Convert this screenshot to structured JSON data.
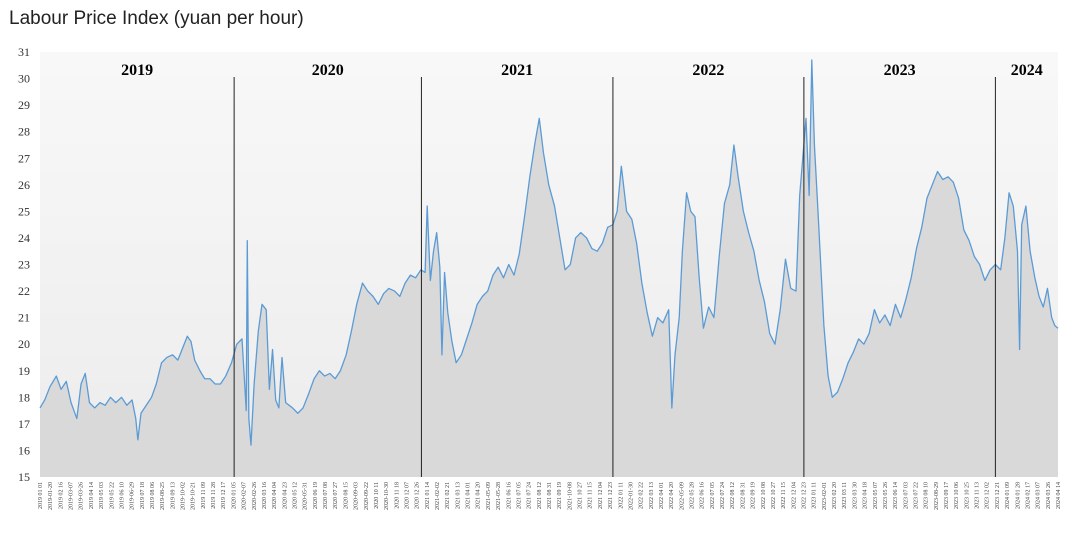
{
  "chart_data": {
    "type": "area",
    "title": "Labour Price Index (yuan per hour)",
    "xlabel": "",
    "ylabel": "",
    "ylim": [
      15,
      31
    ],
    "yticks": [
      15,
      16,
      17,
      18,
      19,
      20,
      21,
      22,
      23,
      24,
      25,
      26,
      27,
      28,
      29,
      30,
      31
    ],
    "grid": false,
    "line_color": "#5b9bd5",
    "fill_color": "#d9d9d9",
    "year_labels": [
      "2019",
      "2020",
      "2021",
      "2022",
      "2023",
      "2024"
    ],
    "year_dividers": [
      "2020-01-05",
      "2020-12-26",
      "2021-12-25",
      "2022-12-23",
      "2023-12-22"
    ],
    "x_start": "2019-01-01",
    "x_end": "2024-04-19",
    "x_tick_labels": [
      "2019 01 01",
      "2019-01-20",
      "2019 02 16",
      "2019-03-07",
      "2019-03-26",
      "2019 04 14",
      "2019 05 03",
      "2019 05 22",
      "2019 06 10",
      "2019-06-29",
      "2019 07 18",
      "2019 08 06",
      "2019-08-25",
      "2019 09 13",
      "2019-10-02",
      "2019-10-21",
      "2019 11 09",
      "2019 11 28",
      "2019 12 17",
      "2020 01 05",
      "2020-02-07",
      "2020-02-26",
      "2020 03 16",
      "2020 04 04",
      "2020 04 23",
      "2020 05 12",
      "2020-05-31",
      "2020 06 19",
      "2020 07 08",
      "2020 07 27",
      "2020 08 15",
      "2020-09-03",
      "2020-09-22",
      "2020 10 11",
      "2020-10-30",
      "2020 11 18",
      "2020 12 07",
      "2020 12 26",
      "2021 01 14",
      "2021-02-02",
      "2021 02 21",
      "2021 03 13",
      "2021 04 01",
      "2021 04 20",
      "2021-05-09",
      "2021-05-28",
      "2021 06 16",
      "2021 07 05",
      "2021 07 24",
      "2021 08 12",
      "2021 08 31",
      "2021 09 19",
      "2021-10-08",
      "2021 10 27",
      "2021 11 15",
      "2021 12 04",
      "2021 12 23",
      "2022 01 11",
      "2022-01-30",
      "2022 02 22",
      "2022 03 13",
      "2022 04 01",
      "2022 04 20",
      "2022-05-09",
      "2022 05 28",
      "2022 06 16",
      "2022 07 05",
      "2022 07 24",
      "2022 08 12",
      "2022 08 31",
      "2022 09 19",
      "2022 10 08",
      "2022 10 27",
      "2022 11 15",
      "2022 12 04",
      "2022 12 23",
      "2023 01 11",
      "2023-02-01",
      "2023 02 20",
      "2023 03 11",
      "2023 03 30",
      "2023 04 18",
      "2023 05 07",
      "2023 05 26",
      "2023 06 14",
      "2023 07 03",
      "2023 07 22",
      "2023 08 10",
      "2023-08-29",
      "2023 09 17",
      "2023 10 06",
      "2023 10 25",
      "2023 11 13",
      "2023 12 02",
      "2023 12 21",
      "2024 01 09",
      "2024 01 28",
      "2024 02 17",
      "2024 03 07",
      "2024 03 26",
      "2024 04 14"
    ],
    "series": [
      {
        "values": [
          [
            "2019-01-01",
            17.6
          ],
          [
            "2019-01-10",
            17.9
          ],
          [
            "2019-01-20",
            18.4
          ],
          [
            "2019-02-01",
            18.8
          ],
          [
            "2019-02-10",
            18.3
          ],
          [
            "2019-02-20",
            18.6
          ],
          [
            "2019-03-01",
            17.8
          ],
          [
            "2019-03-12",
            17.2
          ],
          [
            "2019-03-20",
            18.5
          ],
          [
            "2019-03-28",
            18.9
          ],
          [
            "2019-04-05",
            17.8
          ],
          [
            "2019-04-15",
            17.6
          ],
          [
            "2019-04-25",
            17.8
          ],
          [
            "2019-05-05",
            17.7
          ],
          [
            "2019-05-15",
            18.0
          ],
          [
            "2019-05-25",
            17.8
          ],
          [
            "2019-06-05",
            18.0
          ],
          [
            "2019-06-15",
            17.7
          ],
          [
            "2019-06-25",
            17.9
          ],
          [
            "2019-07-02",
            17.2
          ],
          [
            "2019-07-06",
            16.4
          ],
          [
            "2019-07-12",
            17.4
          ],
          [
            "2019-07-22",
            17.7
          ],
          [
            "2019-08-01",
            18.0
          ],
          [
            "2019-08-10",
            18.5
          ],
          [
            "2019-08-20",
            19.3
          ],
          [
            "2019-08-30",
            19.5
          ],
          [
            "2019-09-10",
            19.6
          ],
          [
            "2019-09-20",
            19.4
          ],
          [
            "2019-09-30",
            19.9
          ],
          [
            "2019-10-08",
            20.3
          ],
          [
            "2019-10-15",
            20.1
          ],
          [
            "2019-10-22",
            19.4
          ],
          [
            "2019-11-01",
            19.0
          ],
          [
            "2019-11-10",
            18.7
          ],
          [
            "2019-11-20",
            18.7
          ],
          [
            "2019-11-30",
            18.5
          ],
          [
            "2019-12-10",
            18.5
          ],
          [
            "2019-12-20",
            18.8
          ],
          [
            "2019-12-31",
            19.3
          ],
          [
            "2020-01-10",
            20.0
          ],
          [
            "2020-01-20",
            20.2
          ],
          [
            "2020-01-28",
            17.5
          ],
          [
            "2020-01-30",
            23.9
          ],
          [
            "2020-02-02",
            17.2
          ],
          [
            "2020-02-06",
            16.2
          ],
          [
            "2020-02-12",
            18.5
          ],
          [
            "2020-02-20",
            20.5
          ],
          [
            "2020-02-27",
            21.5
          ],
          [
            "2020-03-06",
            21.3
          ],
          [
            "2020-03-12",
            18.3
          ],
          [
            "2020-03-18",
            19.8
          ],
          [
            "2020-03-24",
            17.9
          ],
          [
            "2020-03-30",
            17.6
          ],
          [
            "2020-04-05",
            19.5
          ],
          [
            "2020-04-12",
            17.8
          ],
          [
            "2020-04-25",
            17.6
          ],
          [
            "2020-05-05",
            17.4
          ],
          [
            "2020-05-15",
            17.6
          ],
          [
            "2020-05-25",
            18.1
          ],
          [
            "2020-06-05",
            18.7
          ],
          [
            "2020-06-15",
            19.0
          ],
          [
            "2020-06-25",
            18.8
          ],
          [
            "2020-07-05",
            18.9
          ],
          [
            "2020-07-15",
            18.7
          ],
          [
            "2020-07-25",
            19.0
          ],
          [
            "2020-08-05",
            19.6
          ],
          [
            "2020-08-15",
            20.5
          ],
          [
            "2020-08-25",
            21.5
          ],
          [
            "2020-09-05",
            22.3
          ],
          [
            "2020-09-15",
            22.0
          ],
          [
            "2020-09-25",
            21.8
          ],
          [
            "2020-10-05",
            21.5
          ],
          [
            "2020-10-15",
            21.9
          ],
          [
            "2020-10-25",
            22.1
          ],
          [
            "2020-11-05",
            22.0
          ],
          [
            "2020-11-15",
            21.8
          ],
          [
            "2020-11-25",
            22.3
          ],
          [
            "2020-12-05",
            22.6
          ],
          [
            "2020-12-15",
            22.5
          ],
          [
            "2020-12-25",
            22.8
          ],
          [
            "2021-01-02",
            22.7
          ],
          [
            "2021-01-06",
            25.2
          ],
          [
            "2021-01-12",
            22.4
          ],
          [
            "2021-01-18",
            23.5
          ],
          [
            "2021-01-24",
            24.2
          ],
          [
            "2021-01-30",
            22.9
          ],
          [
            "2021-02-03",
            19.6
          ],
          [
            "2021-02-08",
            22.7
          ],
          [
            "2021-02-14",
            21.2
          ],
          [
            "2021-02-22",
            20.1
          ],
          [
            "2021-03-02",
            19.3
          ],
          [
            "2021-03-12",
            19.6
          ],
          [
            "2021-03-22",
            20.2
          ],
          [
            "2021-04-01",
            20.8
          ],
          [
            "2021-04-11",
            21.5
          ],
          [
            "2021-04-21",
            21.8
          ],
          [
            "2021-05-01",
            22.0
          ],
          [
            "2021-05-11",
            22.6
          ],
          [
            "2021-05-21",
            22.9
          ],
          [
            "2021-05-31",
            22.5
          ],
          [
            "2021-06-10",
            23.0
          ],
          [
            "2021-06-20",
            22.6
          ],
          [
            "2021-06-30",
            23.4
          ],
          [
            "2021-07-10",
            24.8
          ],
          [
            "2021-07-20",
            26.3
          ],
          [
            "2021-07-30",
            27.6
          ],
          [
            "2021-08-07",
            28.5
          ],
          [
            "2021-08-15",
            27.2
          ],
          [
            "2021-08-25",
            26.0
          ],
          [
            "2021-09-05",
            25.2
          ],
          [
            "2021-09-15",
            24.0
          ],
          [
            "2021-09-25",
            22.8
          ],
          [
            "2021-10-05",
            23.0
          ],
          [
            "2021-10-15",
            24.0
          ],
          [
            "2021-10-25",
            24.2
          ],
          [
            "2021-11-05",
            24.0
          ],
          [
            "2021-11-15",
            23.6
          ],
          [
            "2021-11-25",
            23.5
          ],
          [
            "2021-12-05",
            23.8
          ],
          [
            "2021-12-15",
            24.4
          ],
          [
            "2021-12-25",
            24.5
          ],
          [
            "2022-01-02",
            25.0
          ],
          [
            "2022-01-10",
            26.7
          ],
          [
            "2022-01-20",
            25.0
          ],
          [
            "2022-01-30",
            24.7
          ],
          [
            "2022-02-08",
            23.8
          ],
          [
            "2022-02-18",
            22.3
          ],
          [
            "2022-02-28",
            21.2
          ],
          [
            "2022-03-10",
            20.3
          ],
          [
            "2022-03-20",
            21.0
          ],
          [
            "2022-03-30",
            20.8
          ],
          [
            "2022-04-10",
            21.3
          ],
          [
            "2022-04-16",
            17.6
          ],
          [
            "2022-04-22",
            19.6
          ],
          [
            "2022-04-30",
            21.0
          ],
          [
            "2022-05-06",
            23.5
          ],
          [
            "2022-05-14",
            25.7
          ],
          [
            "2022-05-22",
            25.0
          ],
          [
            "2022-05-30",
            24.8
          ],
          [
            "2022-06-07",
            22.5
          ],
          [
            "2022-06-15",
            20.6
          ],
          [
            "2022-06-25",
            21.4
          ],
          [
            "2022-07-05",
            21.0
          ],
          [
            "2022-07-15",
            23.3
          ],
          [
            "2022-07-25",
            25.3
          ],
          [
            "2022-08-04",
            26.0
          ],
          [
            "2022-08-12",
            27.5
          ],
          [
            "2022-08-20",
            26.3
          ],
          [
            "2022-08-30",
            25.0
          ],
          [
            "2022-09-09",
            24.2
          ],
          [
            "2022-09-19",
            23.5
          ],
          [
            "2022-09-29",
            22.4
          ],
          [
            "2022-10-09",
            21.6
          ],
          [
            "2022-10-19",
            20.4
          ],
          [
            "2022-10-29",
            20.0
          ],
          [
            "2022-11-08",
            21.3
          ],
          [
            "2022-11-18",
            23.2
          ],
          [
            "2022-11-28",
            22.1
          ],
          [
            "2022-12-08",
            22.0
          ],
          [
            "2022-12-15",
            25.6
          ],
          [
            "2022-12-20",
            26.8
          ],
          [
            "2022-12-27",
            28.5
          ],
          [
            "2023-01-02",
            25.6
          ],
          [
            "2023-01-07",
            30.7
          ],
          [
            "2023-01-12",
            27.5
          ],
          [
            "2023-01-18",
            25.3
          ],
          [
            "2023-01-24",
            23.0
          ],
          [
            "2023-01-30",
            20.7
          ],
          [
            "2023-02-07",
            18.8
          ],
          [
            "2023-02-15",
            18.0
          ],
          [
            "2023-02-25",
            18.2
          ],
          [
            "2023-03-07",
            18.7
          ],
          [
            "2023-03-17",
            19.3
          ],
          [
            "2023-03-27",
            19.7
          ],
          [
            "2023-04-06",
            20.2
          ],
          [
            "2023-04-16",
            20.0
          ],
          [
            "2023-04-26",
            20.4
          ],
          [
            "2023-05-06",
            21.3
          ],
          [
            "2023-05-16",
            20.8
          ],
          [
            "2023-05-26",
            21.1
          ],
          [
            "2023-06-05",
            20.7
          ],
          [
            "2023-06-15",
            21.5
          ],
          [
            "2023-06-25",
            21.0
          ],
          [
            "2023-07-05",
            21.7
          ],
          [
            "2023-07-15",
            22.5
          ],
          [
            "2023-07-25",
            23.6
          ],
          [
            "2023-08-04",
            24.4
          ],
          [
            "2023-08-14",
            25.5
          ],
          [
            "2023-08-24",
            26.0
          ],
          [
            "2023-09-03",
            26.5
          ],
          [
            "2023-09-13",
            26.2
          ],
          [
            "2023-09-23",
            26.3
          ],
          [
            "2023-10-03",
            26.1
          ],
          [
            "2023-10-13",
            25.5
          ],
          [
            "2023-10-23",
            24.3
          ],
          [
            "2023-11-02",
            23.9
          ],
          [
            "2023-11-12",
            23.3
          ],
          [
            "2023-11-22",
            23.0
          ],
          [
            "2023-12-02",
            22.4
          ],
          [
            "2023-12-12",
            22.8
          ],
          [
            "2023-12-22",
            23.0
          ],
          [
            "2024-01-01",
            22.8
          ],
          [
            "2024-01-09",
            24.0
          ],
          [
            "2024-01-17",
            25.7
          ],
          [
            "2024-01-25",
            25.2
          ],
          [
            "2024-02-02",
            23.5
          ],
          [
            "2024-02-06",
            19.8
          ],
          [
            "2024-02-10",
            24.5
          ],
          [
            "2024-02-18",
            25.2
          ],
          [
            "2024-02-26",
            23.5
          ],
          [
            "2024-03-06",
            22.5
          ],
          [
            "2024-03-14",
            21.8
          ],
          [
            "2024-03-22",
            21.4
          ],
          [
            "2024-03-30",
            22.1
          ],
          [
            "2024-04-07",
            21.0
          ],
          [
            "2024-04-13",
            20.7
          ],
          [
            "2024-04-19",
            20.6
          ]
        ]
      }
    ]
  }
}
